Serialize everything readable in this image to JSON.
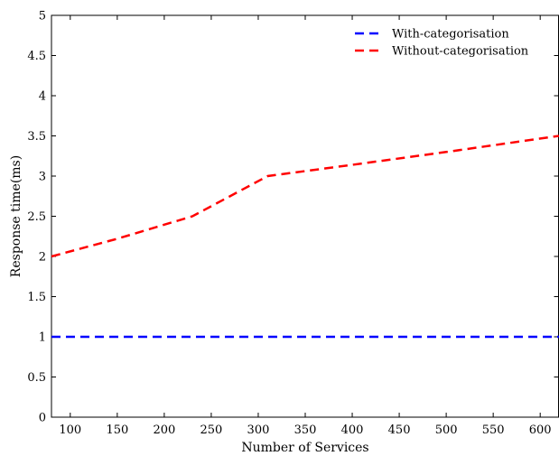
{
  "chart_data": {
    "type": "line",
    "title": "",
    "xlabel": "Number of Services",
    "ylabel": "Response time(ms)",
    "xlim": [
      80,
      620
    ],
    "ylim": [
      0,
      5
    ],
    "xticks": [
      100,
      150,
      200,
      250,
      300,
      350,
      400,
      450,
      500,
      550,
      600
    ],
    "yticks": [
      0,
      0.5,
      1,
      1.5,
      2,
      2.5,
      3,
      3.5,
      4,
      4.5,
      5
    ],
    "grid": false,
    "legend_position": "top-right",
    "series": [
      {
        "name": "With-categorisation",
        "color": "#0000ff",
        "style": "dashed",
        "points": [
          [
            80,
            1
          ],
          [
            620,
            1
          ]
        ]
      },
      {
        "name": "Without-categorisation",
        "color": "#ff0000",
        "style": "dashed",
        "points": [
          [
            80,
            2
          ],
          [
            150,
            2.22
          ],
          [
            230,
            2.5
          ],
          [
            310,
            3
          ],
          [
            400,
            3.14
          ],
          [
            500,
            3.3
          ],
          [
            620,
            3.5
          ]
        ]
      }
    ]
  }
}
